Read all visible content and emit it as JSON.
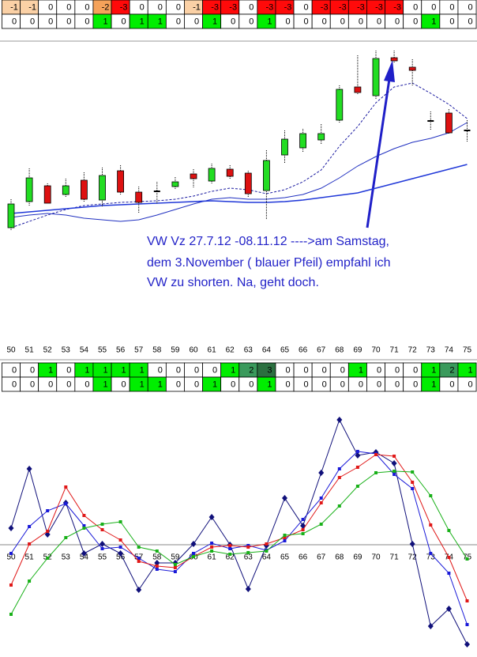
{
  "tables": [
    {
      "rows": [
        [
          -1,
          -1,
          0,
          0,
          0,
          -2,
          -3,
          0,
          0,
          0,
          -1,
          -3,
          -3,
          0,
          -3,
          -3,
          0,
          -3,
          -3,
          -3,
          -3,
          -3,
          0,
          0,
          0,
          0
        ],
        [
          0,
          0,
          0,
          0,
          0,
          1,
          0,
          1,
          1,
          0,
          0,
          1,
          0,
          0,
          1,
          0,
          0,
          0,
          0,
          0,
          0,
          0,
          0,
          1,
          0,
          0
        ]
      ]
    },
    {
      "rows": [
        [
          0,
          0,
          1,
          0,
          1,
          1,
          1,
          1,
          0,
          0,
          0,
          0,
          1,
          2,
          3,
          0,
          0,
          0,
          0,
          1,
          0,
          0,
          0,
          1,
          2,
          1
        ],
        [
          0,
          0,
          0,
          0,
          0,
          1,
          0,
          1,
          1,
          0,
          0,
          1,
          0,
          0,
          1,
          0,
          0,
          0,
          0,
          0,
          0,
          0,
          0,
          1,
          0,
          0
        ]
      ]
    }
  ],
  "chart_data": [
    {
      "type": "candlestick",
      "categories": [
        50,
        51,
        52,
        53,
        54,
        55,
        56,
        57,
        58,
        59,
        60,
        61,
        62,
        63,
        64,
        65,
        66,
        67,
        68,
        69,
        70,
        71,
        72,
        73,
        74,
        75
      ],
      "open": [
        142,
        175,
        195,
        184,
        202,
        177,
        214,
        187,
        188,
        194,
        210,
        201,
        216,
        211,
        189,
        234,
        243,
        253,
        278,
        320,
        309,
        357,
        345,
        277,
        287,
        265
      ],
      "close": [
        172,
        205,
        173,
        195,
        178,
        208,
        187,
        174,
        188,
        200,
        204,
        217,
        207,
        185,
        227,
        254,
        261,
        261,
        317,
        313,
        356,
        353,
        341,
        277,
        262,
        265
      ],
      "high": [
        178,
        217,
        198,
        204,
        212,
        218,
        221,
        194,
        200,
        206,
        216,
        223,
        221,
        214,
        240,
        265,
        267,
        273,
        322,
        360,
        366,
        366,
        355,
        289,
        292,
        278
      ],
      "low": [
        138,
        170,
        172,
        180,
        174,
        168,
        184,
        160,
        172,
        190,
        192,
        198,
        203,
        180,
        153,
        224,
        238,
        247,
        275,
        310,
        305,
        350,
        322,
        266,
        260,
        251
      ],
      "up_color": "#22dd22",
      "down_color": "#dd1111",
      "lines": [
        {
          "color": "#1a1aa0",
          "dashed": true,
          "values": [
            142,
            150,
            158,
            165,
            170,
            172,
            174,
            175,
            176,
            178,
            182,
            188,
            192,
            190,
            185,
            190,
            200,
            215,
            245,
            270,
            300,
            320,
            325,
            312,
            298,
            280
          ]
        },
        {
          "color": "#2030c0",
          "dashed": false,
          "values": [
            155,
            158,
            160,
            158,
            154,
            152,
            150,
            152,
            158,
            165,
            172,
            178,
            180,
            178,
            178,
            180,
            184,
            192,
            205,
            220,
            232,
            242,
            250,
            255,
            262,
            275
          ]
        },
        {
          "color": "#2038d8",
          "dashed": false,
          "values": [
            160,
            162,
            164,
            166,
            168,
            170,
            171,
            172,
            173,
            174,
            175,
            176,
            175,
            174,
            174,
            175,
            177,
            180,
            183,
            186,
            192,
            198,
            204,
            210,
            216,
            222
          ]
        }
      ],
      "ylim": [
        0,
        380
      ],
      "annotation": [
        "VW Vz  27.7.12 -08.11.12 ---->am Samstag,",
        "dem 3.November  ( blauer Pfeil) empfahl ich",
        "VW zu shorten. Na, geht doch."
      ]
    },
    {
      "type": "line",
      "categories": [
        50,
        51,
        52,
        53,
        54,
        55,
        56,
        57,
        58,
        59,
        60,
        61,
        62,
        63,
        64,
        65,
        66,
        67,
        68,
        69,
        70,
        71,
        72,
        73,
        74,
        75
      ],
      "series": [
        {
          "color": "#10107a",
          "marker": "diamond",
          "values": [
            21,
            96,
            13,
            53,
            -11,
            1,
            -11,
            -57,
            -23,
            -23,
            1,
            35,
            0,
            -56,
            -1,
            59,
            24,
            91,
            158,
            113,
            117,
            103,
            1,
            -103,
            -81,
            -126
          ]
        },
        {
          "color": "#1a1ad8",
          "marker": "square",
          "values": [
            -11,
            23,
            43,
            52,
            24,
            -5,
            -3,
            -17,
            -31,
            -34,
            -11,
            2,
            -5,
            -1,
            -7,
            5,
            32,
            59,
            96,
            118,
            115,
            89,
            71,
            -11,
            -36,
            -101
          ]
        },
        {
          "color": "#e01818",
          "marker": "square",
          "values": [
            -51,
            1,
            17,
            73,
            37,
            19,
            6,
            -21,
            -27,
            -29,
            -15,
            -3,
            -1,
            -3,
            1,
            9,
            19,
            53,
            85,
            98,
            114,
            112,
            79,
            25,
            -16,
            -71
          ]
        },
        {
          "color": "#18b018",
          "marker": "square",
          "values": [
            -88,
            -46,
            -17,
            9,
            21,
            26,
            29,
            -3,
            -8,
            -25,
            -15,
            -8,
            -12,
            -10,
            -8,
            12,
            14,
            26,
            49,
            74,
            91,
            93,
            92,
            62,
            18,
            -18
          ]
        }
      ],
      "ylim": [
        -142,
        189
      ]
    }
  ]
}
